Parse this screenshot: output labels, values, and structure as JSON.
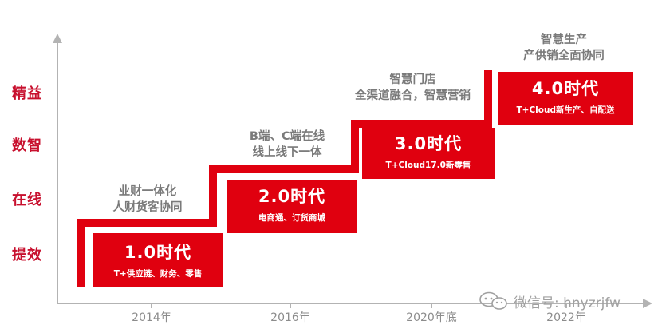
{
  "y_axis_levels": [
    "精益",
    "数智",
    "在线",
    "提效"
  ],
  "x_axis_ticks": [
    "2014年",
    "2016年",
    "2020年底",
    "2022年"
  ],
  "eras": [
    {
      "title": "1.0时代",
      "desc": "T+供应链、财务、零售"
    },
    {
      "title": "2.0时代",
      "desc": "电商通、订货商城"
    },
    {
      "title": "3.0时代",
      "desc": "T+Cloud17.0新零售"
    },
    {
      "title": "4.0时代",
      "desc": "T+Cloud新生产、自配送"
    }
  ],
  "annotations": [
    {
      "line1": "业财一体化",
      "line2": "人财货客协同"
    },
    {
      "line1": "B端、C端在线",
      "line2": "线上线下一体"
    },
    {
      "line1": "智慧门店",
      "line2": "全渠道融合，智慧营销"
    },
    {
      "line1": "智慧生产",
      "line2": "产供销全面协同"
    }
  ],
  "watermark": {
    "text": "微信号: hnyzrjfw",
    "icon": "wechat-icon"
  },
  "colors": {
    "accent": "#e0000f",
    "axis": "#b3b3b3",
    "muted_text": "#7a7a7a",
    "level_text": "#c8102e"
  }
}
